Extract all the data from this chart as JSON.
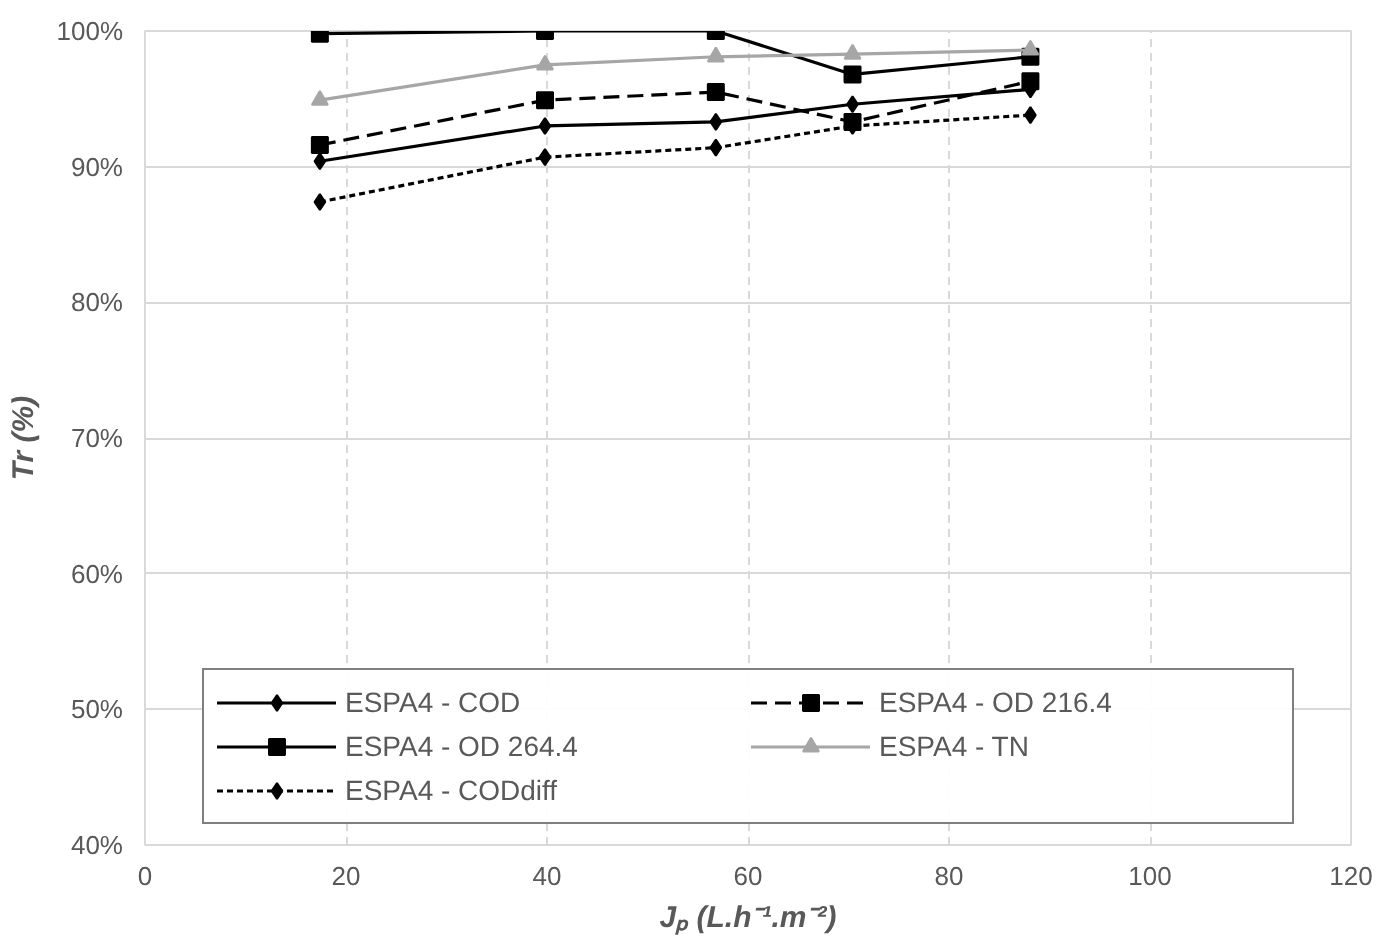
{
  "chart_data": {
    "type": "line",
    "xlabel": "Jₚ (L.h⁻¹.m⁻²)",
    "ylabel": "Tr (%)",
    "x": [
      17.4,
      39.8,
      56.8,
      70.4,
      88.1
    ],
    "series": [
      {
        "name": "ESPA4 - COD",
        "color": "#000000",
        "marker": "diamond",
        "line_style": "solid",
        "values": [
          90.4,
          93.0,
          93.3,
          94.6,
          95.7
        ]
      },
      {
        "name": "ESPA4 - OD 264.4",
        "color": "#000000",
        "marker": "square",
        "line_style": "solid",
        "values": [
          99.8,
          100,
          100,
          96.8,
          98.1
        ]
      },
      {
        "name": "ESPA4 - CODdiff",
        "color": "#000000",
        "marker": "diamond",
        "line_style": "dotted",
        "values": [
          87.4,
          90.7,
          91.4,
          93.0,
          93.8
        ]
      },
      {
        "name": "ESPA4 - OD 216.4",
        "color": "#000000",
        "marker": "square",
        "line_style": "dashed",
        "values": [
          91.6,
          94.9,
          95.5,
          93.3,
          96.3
        ]
      },
      {
        "name": "ESPA4 - TN",
        "color": "#a6a6a6",
        "marker": "triangle",
        "line_style": "solid",
        "values": [
          94.9,
          97.5,
          98.1,
          98.3,
          98.6
        ]
      }
    ],
    "xlim": [
      0,
      120
    ],
    "xticks": [
      0,
      20,
      40,
      60,
      80,
      100,
      120
    ],
    "ylim": [
      40,
      100
    ],
    "yticks": [
      {
        "value": 40,
        "label": "40%"
      },
      {
        "value": 50,
        "label": "50%"
      },
      {
        "value": 60,
        "label": "60%"
      },
      {
        "value": 70,
        "label": "70%"
      },
      {
        "value": 80,
        "label": "80%"
      },
      {
        "value": 90,
        "label": "90%"
      },
      {
        "value": 100,
        "label": "100%"
      }
    ],
    "grid": true,
    "legend": "bottom"
  }
}
